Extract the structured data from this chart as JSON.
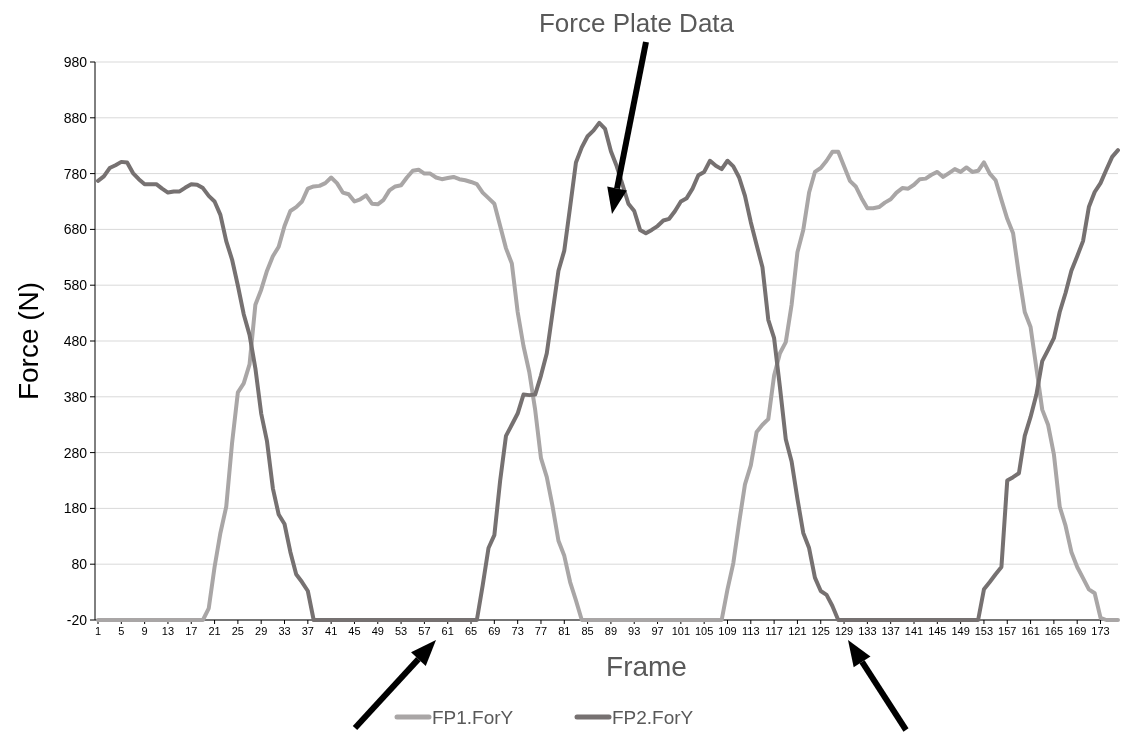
{
  "chart_data": {
    "type": "line",
    "title": "Force Plate Data",
    "xlabel": "Frame",
    "ylabel": "Force (N)",
    "categories": [
      "1",
      null,
      null,
      null,
      "5",
      null,
      null,
      null,
      "9",
      null,
      null,
      null,
      "13",
      null,
      null,
      null,
      "17",
      null,
      null,
      null,
      "21",
      null,
      null,
      null,
      "25",
      null,
      null,
      null,
      "29",
      null,
      null,
      null,
      "33",
      null,
      null,
      null,
      "37",
      null,
      null,
      null,
      "41",
      null,
      null,
      null,
      "45",
      null,
      null,
      null,
      "49",
      null,
      null,
      null,
      "53",
      null,
      null,
      null,
      "57",
      null,
      null,
      null,
      "61",
      null,
      null,
      null,
      "65",
      null,
      null,
      null,
      "69",
      null,
      null,
      null,
      "73",
      null,
      null,
      null,
      "77",
      null,
      null,
      null,
      "81",
      null,
      null,
      null,
      "85",
      null,
      null,
      null,
      "89",
      null,
      null,
      null,
      "93",
      null,
      null,
      null,
      "97",
      null,
      null,
      null,
      "101",
      null,
      null,
      null,
      "105",
      null,
      null,
      null,
      "109",
      null,
      null,
      null,
      "113",
      null,
      null,
      null,
      "117",
      null,
      null,
      null,
      "121",
      null,
      null,
      null,
      "125",
      null,
      null,
      null,
      "129",
      null,
      null,
      null,
      "133",
      null,
      null,
      null,
      "137",
      null,
      null,
      null,
      "141",
      null,
      null,
      null,
      "145",
      null,
      null,
      null,
      "149",
      null,
      null,
      null,
      "153",
      null,
      null,
      null,
      "157",
      null,
      null,
      null,
      "161",
      null,
      null,
      null,
      "165",
      null,
      null,
      null,
      "169",
      null,
      null,
      null,
      "173",
      null,
      null,
      null
    ],
    "ylim": [
      -20,
      980
    ],
    "yticks": [
      -20,
      80,
      180,
      280,
      380,
      480,
      580,
      680,
      780,
      880,
      980
    ],
    "grid": "y",
    "legend": "bottom",
    "marker": "none",
    "line_style": "solid",
    "series": [
      {
        "name": "FP1.ForY",
        "color": "#a9a6a6",
        "values": [
          -20,
          -20,
          -20,
          -20,
          -20,
          -20,
          -20,
          -20,
          -20,
          -20,
          -20,
          -20,
          -20,
          -20,
          -20,
          -20,
          -20,
          -20,
          -20,
          1,
          75,
          136,
          183,
          297,
          388,
          404,
          438,
          545,
          572,
          606,
          632,
          649,
          686,
          713,
          720,
          730,
          753,
          757,
          758,
          763,
          773,
          763,
          746,
          743,
          730,
          734,
          741,
          726,
          725,
          733,
          750,
          757,
          759,
          773,
          785,
          787,
          780,
          780,
          773,
          770,
          772,
          774,
          770,
          768,
          765,
          761,
          746,
          736,
          726,
          686,
          646,
          619,
          532,
          471,
          424,
          357,
          270,
          236,
          183,
          122,
          95,
          48,
          15,
          -20,
          -20,
          -20,
          -20,
          -20,
          -20,
          -20,
          -20,
          -20,
          -20,
          -20,
          -20,
          -20,
          -20,
          -20,
          -20,
          -20,
          -20,
          -20,
          -20,
          -20,
          -20,
          -20,
          -20,
          -20,
          35,
          82,
          155,
          223,
          257,
          317,
          330,
          340,
          418,
          458,
          478,
          545,
          639,
          679,
          746,
          783,
          790,
          803,
          819,
          819,
          793,
          767,
          757,
          736,
          718,
          718,
          720,
          728,
          734,
          746,
          754,
          753,
          760,
          770,
          771,
          778,
          783,
          774,
          781,
          788,
          783,
          791,
          783,
          785,
          800,
          780,
          768,
          733,
          699,
          673,
          599,
          532,
          505,
          431,
          357,
          330,
          277,
          183,
          149,
          102,
          75,
          55,
          35,
          28,
          -16,
          -20,
          -20,
          -20
        ]
      },
      {
        "name": "FP2.ForY",
        "color": "#767171",
        "values": [
          767,
          775,
          790,
          795,
          801,
          800,
          781,
          770,
          761,
          761,
          761,
          753,
          746,
          748,
          748,
          755,
          761,
          760,
          754,
          740,
          730,
          706,
          659,
          626,
          579,
          528,
          491,
          431,
          350,
          300,
          216,
          169,
          152,
          102,
          62,
          48,
          32,
          -20,
          -20,
          -20,
          -20,
          -20,
          -20,
          -20,
          -20,
          -20,
          -20,
          -20,
          -20,
          -20,
          -20,
          -20,
          -20,
          -20,
          -20,
          -20,
          -20,
          -20,
          -20,
          -20,
          -20,
          -20,
          -20,
          -20,
          -20,
          -20,
          42,
          109,
          132,
          230,
          310,
          330,
          350,
          384,
          383,
          384,
          418,
          458,
          532,
          606,
          642,
          720,
          800,
          827,
          847,
          857,
          871,
          860,
          820,
          793,
          760,
          726,
          713,
          679,
          673,
          679,
          686,
          696,
          699,
          713,
          730,
          736,
          753,
          777,
          783,
          803,
          794,
          788,
          803,
          793,
          773,
          740,
          693,
          652,
          612,
          518,
          485,
          397,
          304,
          264,
          197,
          136,
          109,
          56,
          32,
          25,
          5,
          -20,
          -20,
          -20,
          -20,
          -20,
          -20,
          -20,
          -20,
          -20,
          -20,
          -20,
          -20,
          -20,
          -20,
          -20,
          -20,
          -20,
          -20,
          -20,
          -20,
          -20,
          -20,
          -20,
          -20,
          -20,
          35,
          48,
          62,
          75,
          230,
          236,
          243,
          310,
          344,
          384,
          444,
          464,
          485,
          532,
          566,
          606,
          632,
          659,
          720,
          747,
          763,
          787,
          810,
          822
        ]
      }
    ]
  }
}
